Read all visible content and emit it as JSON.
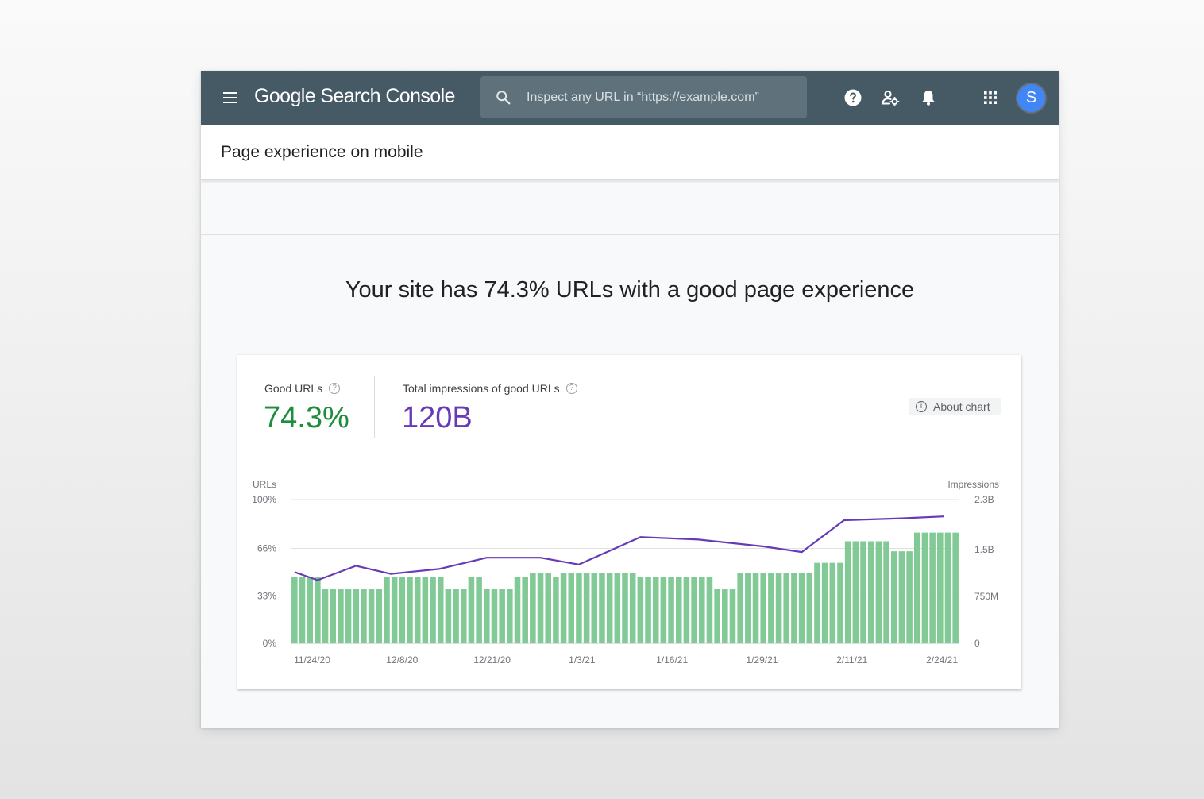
{
  "topbar": {
    "app_title": "Google Search Console",
    "search_placeholder": "Inspect any URL in “https://example.com”",
    "avatar_letter": "S",
    "icons": [
      "menu-icon",
      "search-icon",
      "help-icon",
      "users-settings-icon",
      "bell-icon",
      "apps-icon"
    ]
  },
  "page": {
    "title": "Page experience on mobile",
    "headline": "Your site has 74.3% URLs with a good page experience"
  },
  "metrics": {
    "good_urls": {
      "label": "Good URLs",
      "value": "74.3%"
    },
    "impressions": {
      "label": "Total impressions of good URLs",
      "value": "120B"
    },
    "about_chart": "About chart"
  },
  "colors": {
    "topbar": "#455a64",
    "good": "#1e8e3e",
    "impressions": "#673ab7",
    "bars": "#81c995",
    "line": "#673ab7"
  },
  "chart_data": {
    "type": "bar",
    "left_axis": {
      "title": "URLs",
      "ticks": [
        "100%",
        "66%",
        "33%",
        "0%"
      ],
      "ylim": [
        0,
        100
      ]
    },
    "right_axis": {
      "title": "Impressions",
      "ticks": [
        "2.3B",
        "1.5B",
        "750M",
        "0"
      ],
      "ylim": [
        0,
        2.3
      ]
    },
    "x_ticks": [
      "11/24/20",
      "12/8/20",
      "12/21/20",
      "1/3/21",
      "1/16/21",
      "1/29/21",
      "2/11/21",
      "2/24/21"
    ],
    "series": [
      {
        "name": "Good URLs",
        "axis": "left",
        "type": "bar",
        "values": [
          46,
          46,
          46,
          46,
          38,
          38,
          38,
          38,
          38,
          38,
          38,
          38,
          46,
          46,
          46,
          46,
          46,
          46,
          46,
          46,
          38,
          38,
          38,
          46,
          46,
          38,
          38,
          38,
          38,
          46,
          46,
          49,
          49,
          49,
          46,
          49,
          49,
          49,
          49,
          49,
          49,
          49,
          49,
          49,
          49,
          46,
          46,
          46,
          46,
          46,
          46,
          46,
          46,
          46,
          46,
          38,
          38,
          38,
          49,
          49,
          49,
          49,
          49,
          49,
          49,
          49,
          49,
          49,
          56,
          56,
          56,
          56,
          71,
          71,
          71,
          71,
          71,
          71,
          64,
          64,
          64,
          77,
          77,
          77,
          77,
          77,
          77
        ]
      },
      {
        "name": "Impressions",
        "axis": "right",
        "type": "line",
        "points": [
          [
            0,
            1.14
          ],
          [
            3,
            1.01
          ],
          [
            8,
            1.24
          ],
          [
            12.5,
            1.11
          ],
          [
            18.8,
            1.19
          ],
          [
            25,
            1.37
          ],
          [
            32,
            1.37
          ],
          [
            37,
            1.26
          ],
          [
            45,
            1.7
          ],
          [
            52.6,
            1.66
          ],
          [
            61,
            1.55
          ],
          [
            66,
            1.46
          ],
          [
            71.5,
            1.97
          ],
          [
            79,
            2.0
          ],
          [
            84.5,
            2.03
          ]
        ]
      }
    ]
  }
}
